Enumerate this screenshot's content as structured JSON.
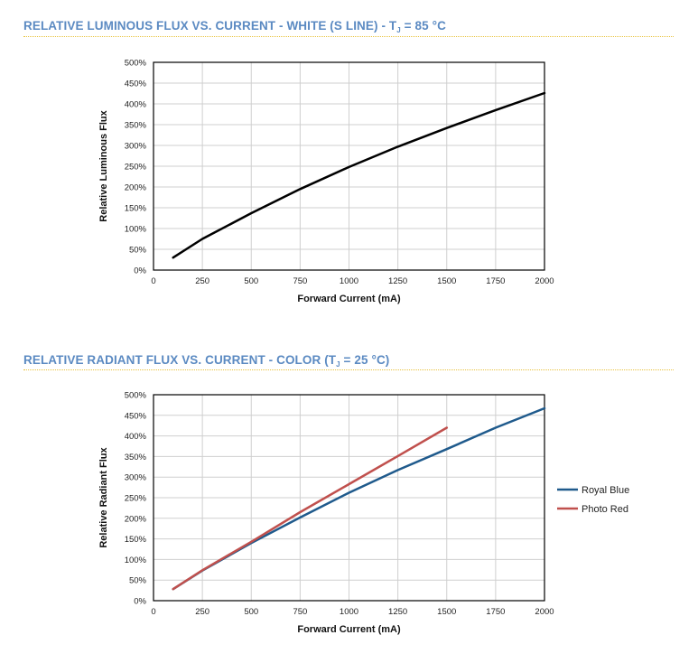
{
  "sections": [
    {
      "title_prefix": "RELATIVE LUMINOUS FLUX VS. CURRENT - WHITE (S LINE) - T",
      "title_sub": "J",
      "title_suffix": " = 85 °C"
    },
    {
      "title_prefix": "RELATIVE RADIANT FLUX VS. CURRENT - COLOR (T",
      "title_sub": "J",
      "title_suffix": " = 25 °C)"
    }
  ],
  "colors": {
    "title": "#5b8ac2",
    "divider": "#e8c23c",
    "royal_blue": "#1f5a8c",
    "photo_red": "#c0504d",
    "white_curve": "#000000"
  },
  "chart_data": [
    {
      "type": "line",
      "xlabel": "Forward Current (mA)",
      "ylabel": "Relative Luminous Flux",
      "xlim": [
        0,
        2000
      ],
      "ylim": [
        0,
        500
      ],
      "xticks": [
        0,
        250,
        500,
        750,
        1000,
        1250,
        1500,
        1750,
        2000
      ],
      "yticks": [
        "0%",
        "50%",
        "100%",
        "150%",
        "200%",
        "250%",
        "300%",
        "350%",
        "400%",
        "450%",
        "500%"
      ],
      "grid": true,
      "series": [
        {
          "x": [
            100,
            250,
            500,
            750,
            1000,
            1250,
            1500,
            1750,
            2000
          ],
          "y": [
            30,
            75,
            137,
            195,
            248,
            297,
            342,
            385,
            426
          ]
        }
      ]
    },
    {
      "type": "line",
      "xlabel": "Forward Current (mA)",
      "ylabel": "Relative Radiant Flux",
      "xlim": [
        0,
        2000
      ],
      "ylim": [
        0,
        500
      ],
      "xticks": [
        0,
        250,
        500,
        750,
        1000,
        1250,
        1500,
        1750,
        2000
      ],
      "yticks": [
        "0%",
        "50%",
        "100%",
        "150%",
        "200%",
        "250%",
        "300%",
        "350%",
        "400%",
        "450%",
        "500%"
      ],
      "grid": true,
      "legend": "right",
      "series": [
        {
          "name": "Royal Blue",
          "x": [
            100,
            250,
            500,
            750,
            1000,
            1250,
            1500,
            1750,
            2000
          ],
          "y": [
            28,
            73,
            140,
            202,
            262,
            317,
            368,
            420,
            467
          ]
        },
        {
          "name": "Photo Red",
          "x": [
            100,
            250,
            500,
            750,
            1000,
            1250,
            1500
          ],
          "y": [
            28,
            74,
            143,
            215,
            283,
            351,
            420
          ]
        }
      ]
    }
  ]
}
